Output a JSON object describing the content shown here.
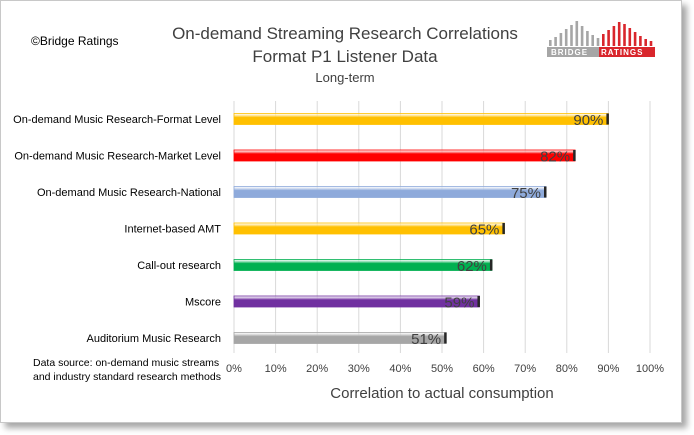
{
  "copyright": "©Bridge Ratings",
  "logo": {
    "text_left": "BRIDGE",
    "text_right": "RATINGS",
    "colors": {
      "gray": "#a6a6a6",
      "red": "#d9262c"
    }
  },
  "source_note": {
    "line1": "Data source: on-demand music streams",
    "line2": "and industry standard research methods"
  },
  "chart_data": {
    "type": "bar",
    "orientation": "horizontal",
    "title": "On-demand Streaming Research Correlations",
    "subtitle_line1": "Format P1 Listener Data",
    "subtitle_line2": "Long-term",
    "xlabel": "Correlation to actual consumption",
    "ylabel": "",
    "xlim": [
      0,
      100
    ],
    "grid": true,
    "tick_values": [
      0,
      10,
      20,
      30,
      40,
      50,
      60,
      70,
      80,
      90,
      100
    ],
    "tick_labels": [
      "0%",
      "10%",
      "20%",
      "30%",
      "40%",
      "50%",
      "60%",
      "70%",
      "80%",
      "90%",
      "100%"
    ],
    "categories": [
      "On-demand Music Research-Format Level",
      "On-demand Music Research-Market Level",
      "On-demand Music Research-National",
      "Internet-based AMT",
      "Call-out research",
      "Mscore",
      "Auditorium Music Research"
    ],
    "values": [
      90,
      82,
      75,
      65,
      62,
      59,
      51
    ],
    "value_labels": [
      "90%",
      "82%",
      "75%",
      "65%",
      "62%",
      "59%",
      "51%"
    ],
    "colors": [
      "#ffc000",
      "#ff0000",
      "#8eaadb",
      "#ffc000",
      "#00b050",
      "#7030a0",
      "#a6a6a6"
    ]
  }
}
